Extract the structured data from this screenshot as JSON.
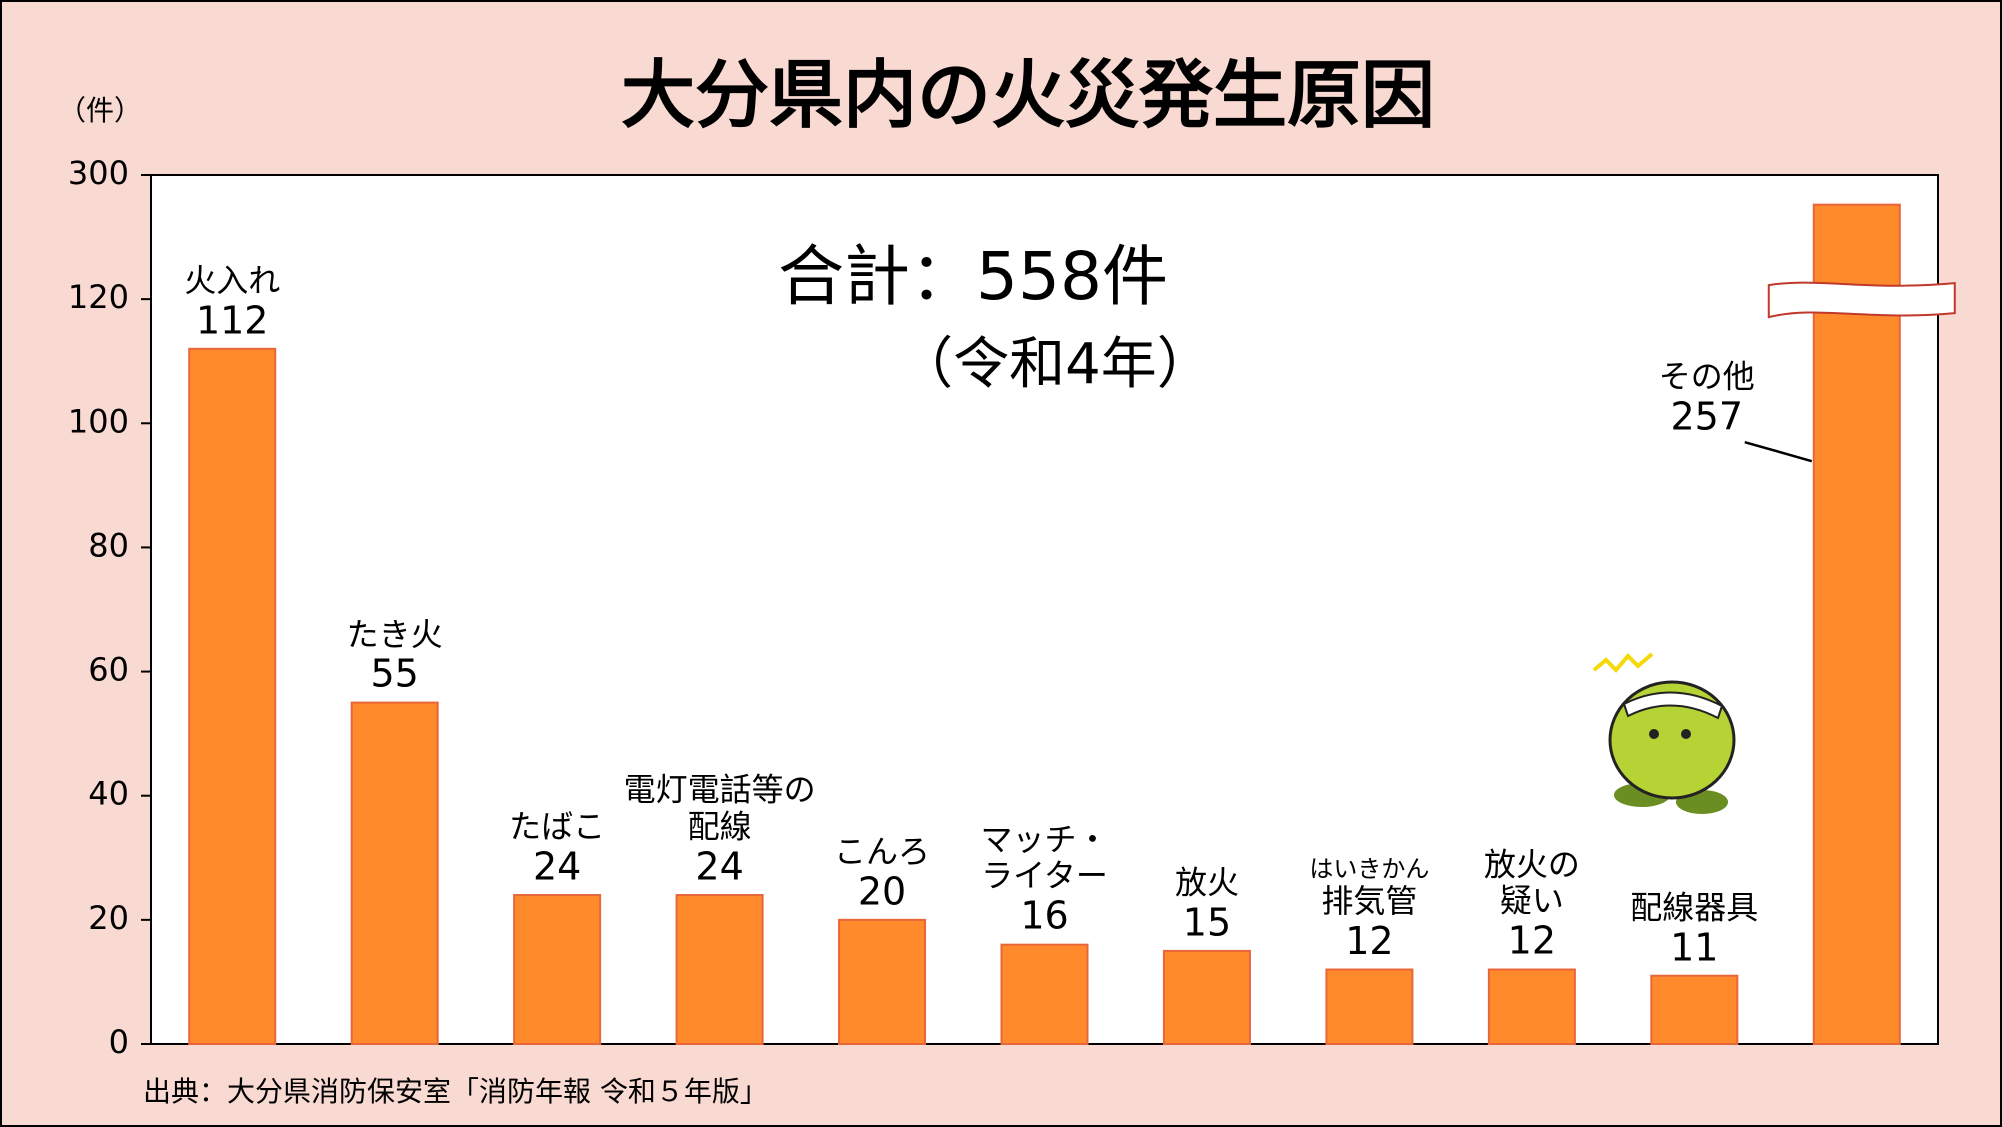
{
  "chart_data": {
    "type": "bar",
    "title": "大分県内の火災発生原因",
    "y_unit": "（件）",
    "total_label": "合計：558件",
    "year_label": "（令和4年）",
    "source": "出典：大分県消防保安室「消防年報 令和５年版」",
    "categories": [
      "火入れ",
      "たき火",
      "たばこ",
      "電灯電話等の\n配線",
      "こんろ",
      "マッチ・\nライター",
      "放火",
      "排気管",
      "放火の\n疑い",
      "配線器具",
      "その他"
    ],
    "category_ruby": [
      null,
      null,
      null,
      null,
      null,
      null,
      null,
      "はいきかん",
      null,
      null,
      null
    ],
    "values": [
      112,
      55,
      24,
      24,
      20,
      16,
      15,
      12,
      12,
      11,
      257
    ],
    "color": "#ff8a2b",
    "ylim": [
      0,
      300
    ],
    "y_break": 120,
    "yticks": [
      0,
      20,
      40,
      60,
      80,
      100,
      120,
      300
    ],
    "grid": false
  }
}
